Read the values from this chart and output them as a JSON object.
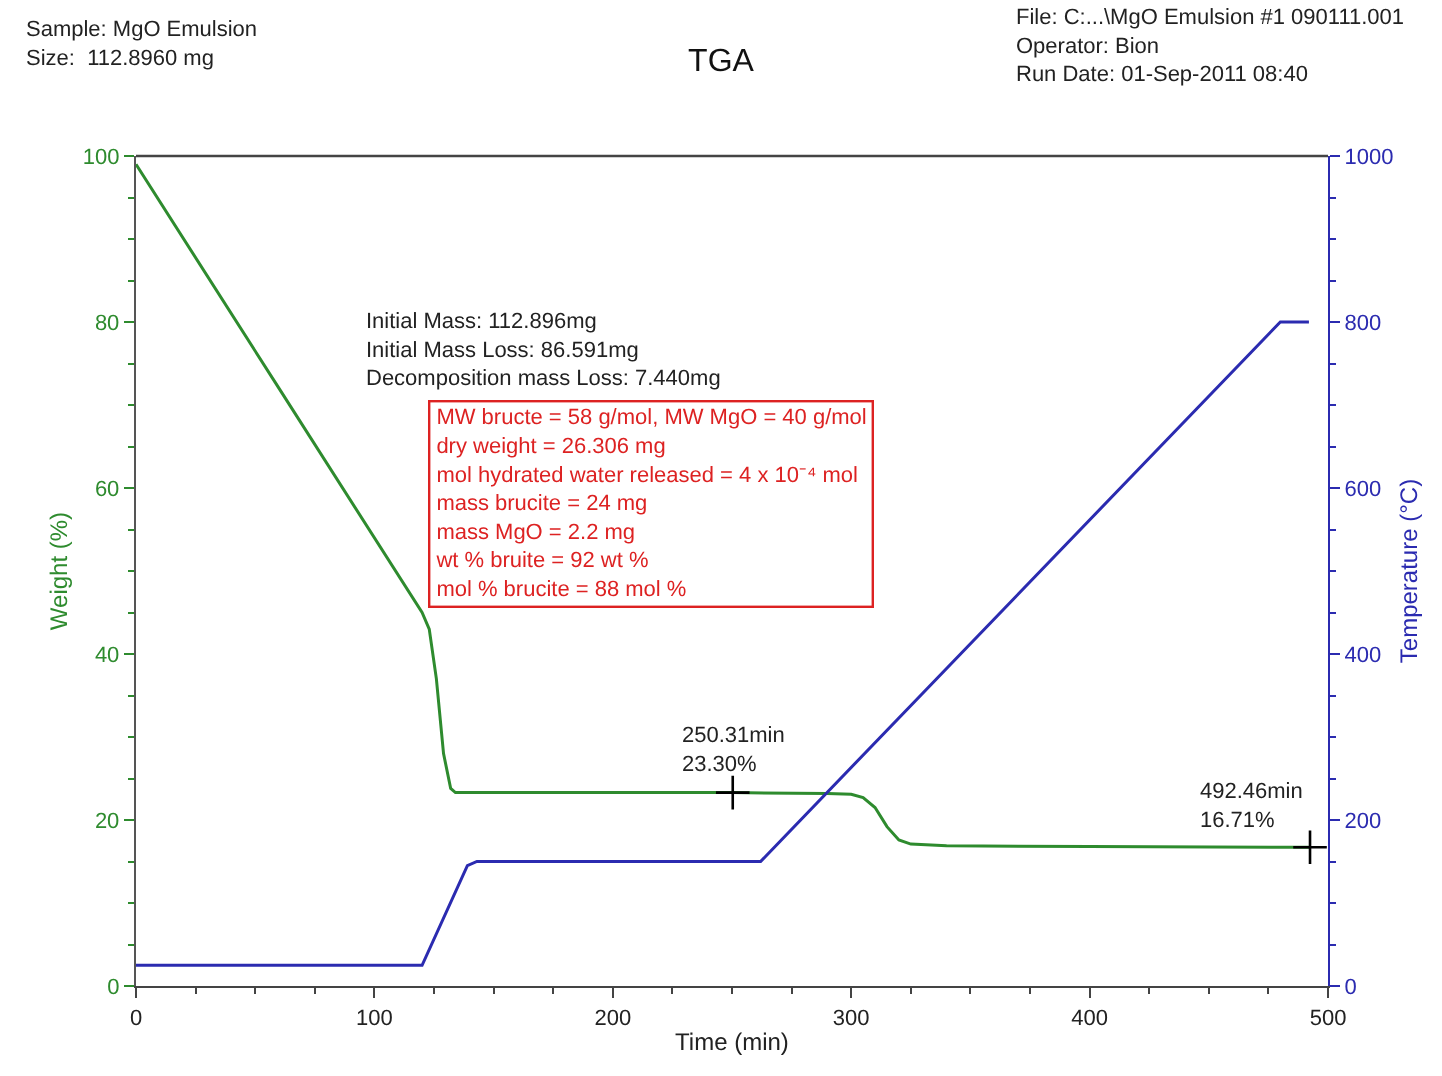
{
  "chart_data": {
    "type": "line",
    "title": "TGA",
    "xlabel": "Time (min)",
    "ylabel": "Weight (%)",
    "y2label": "Temperature (°C)",
    "xlim": [
      0,
      500
    ],
    "xticks": [
      0,
      100,
      200,
      300,
      400,
      500
    ],
    "ylim": [
      0,
      100
    ],
    "yticks": [
      0,
      20,
      40,
      60,
      80,
      100
    ],
    "y2lim": [
      0,
      1000
    ],
    "y2ticks": [
      0,
      200,
      400,
      600,
      800,
      1000
    ],
    "marker": "none",
    "line_style": "solid",
    "series": [
      {
        "color": "#2e8b2e",
        "x": [
          0,
          60,
          120,
          123,
          126,
          129,
          132,
          134,
          200,
          250,
          290,
          300,
          305,
          310,
          315,
          320,
          325,
          340,
          400,
          492.46
        ],
        "values": [
          99,
          72,
          45,
          43,
          37,
          28,
          23.8,
          23.3,
          23.3,
          23.3,
          23.2,
          23.1,
          22.7,
          21.5,
          19.2,
          17.6,
          17.1,
          16.9,
          16.8,
          16.71
        ]
      },
      {
        "color": "#2b2bb0",
        "axis": "y2",
        "x": [
          0,
          120,
          139,
          143,
          262,
          480,
          492
        ],
        "values": [
          25,
          25,
          145,
          150,
          150,
          800,
          800
        ]
      },
      {
        "type": "scatter",
        "marker": "cross",
        "color": "#000000",
        "x": [
          250.31,
          492.46
        ],
        "values": [
          23.3,
          16.71
        ]
      }
    ],
    "annotations": [
      "Sample: MgO Emulsion\nSize:  112.8960 mg",
      "File: C:...\\MgO Emulsion #1 090111.001\nOperator: Bion\nRun Date: 01-Sep-2011 08:40",
      "Initial Mass: 112.896mg\nInitial Mass Loss: 86.591mg\nDecomposition mass Loss: 7.440mg",
      "MW bructe = 58 g/mol, MW MgO = 40 g/mol\ndry weight = 26.306 mg\nmol hydrated water released = 4 x 10⁻⁴ mol\nmass brucite = 24 mg\nmass MgO = 2.2 mg\nwt % bruite = 92 wt %\nmol % brucite = 88 mol %",
      {
        "text": "250.31min\n23.30%",
        "x": 250.31,
        "y": 23.3
      },
      {
        "text": "492.46min\n16.71%",
        "x": 492.46,
        "y": 16.71
      }
    ]
  }
}
